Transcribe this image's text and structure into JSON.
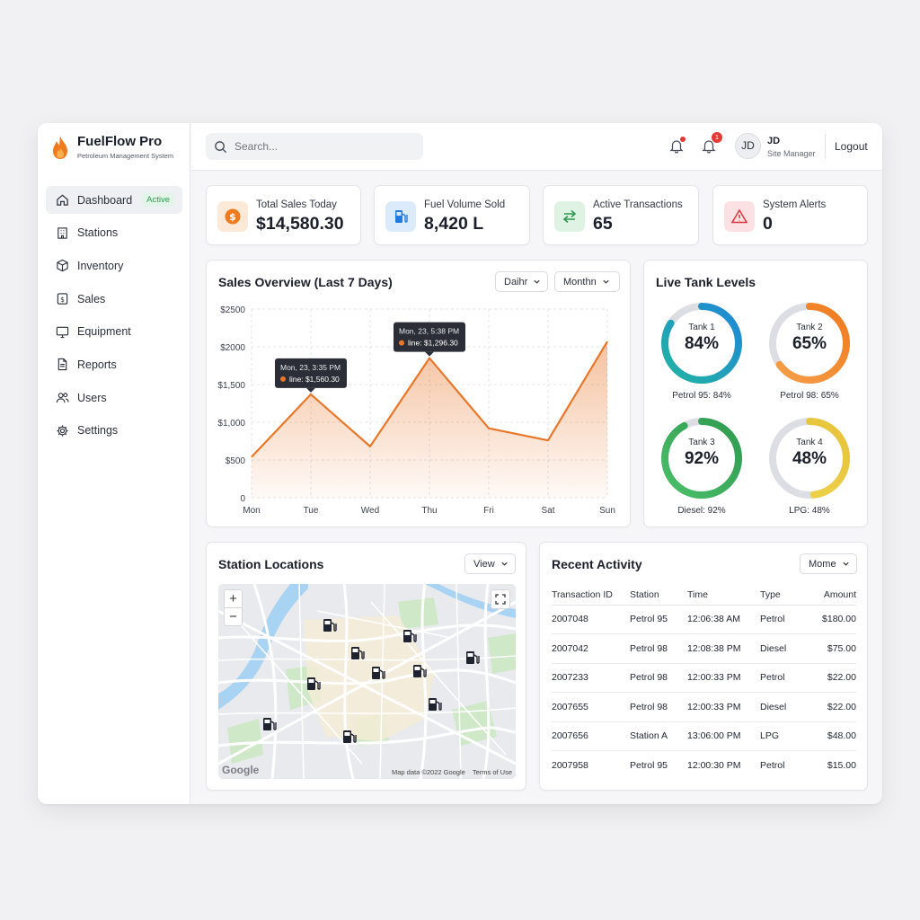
{
  "brand": {
    "title": "FuelFlow Pro",
    "subtitle": "Petroleum Management System"
  },
  "sidebar": {
    "items": [
      {
        "label": "Dashboard",
        "icon": "home-icon",
        "badge": "Active"
      },
      {
        "label": "Stations",
        "icon": "building-icon"
      },
      {
        "label": "Inventory",
        "icon": "box-icon"
      },
      {
        "label": "Sales",
        "icon": "dollar-doc-icon"
      },
      {
        "label": "Equipment",
        "icon": "monitor-icon"
      },
      {
        "label": "Reports",
        "icon": "document-icon"
      },
      {
        "label": "Users",
        "icon": "users-icon"
      },
      {
        "label": "Settings",
        "icon": "gear-icon"
      }
    ]
  },
  "header": {
    "search_placeholder": "Search...",
    "notifications_badge": "1",
    "user_initials": "JD",
    "user_name": "JD",
    "user_role": "Site Manager",
    "logout_label": "Logout"
  },
  "stats": [
    {
      "label": "Total Sales Today",
      "value": "$14,580.30",
      "color": "#f07a1e"
    },
    {
      "label": "Fuel Volume Sold",
      "value": "8,420 L",
      "color": "#1e7be0"
    },
    {
      "label": "Active Transactions",
      "value": "65",
      "color": "#2e9a4f"
    },
    {
      "label": "System Alerts",
      "value": "0",
      "color": "#d9363e"
    }
  ],
  "sales": {
    "title": "Sales Overview (Last 7 Days)",
    "dropdown1": "Daihr",
    "dropdown2": "Monthn",
    "tooltips": [
      {
        "date": "Mon, 23, 3:35 PM",
        "text": "line: $1,560.30"
      },
      {
        "date": "Mon, 23, 5:38 PM",
        "text": "line: $1,296.30"
      }
    ]
  },
  "chart_data": {
    "type": "area",
    "categories": [
      "Mon",
      "Tue",
      "Wed",
      "Thu",
      "Fri",
      "Sat",
      "Sun"
    ],
    "series": [
      {
        "name": "line",
        "values": [
          540,
          1370,
          680,
          1850,
          920,
          760,
          2070
        ]
      }
    ],
    "ylim": [
      0,
      2500
    ],
    "yticks": [
      0,
      500,
      1000,
      1500,
      2000,
      2500
    ],
    "ytick_labels": [
      "0",
      "$500",
      "$1,000",
      "$1,500",
      "$2000",
      "$2500"
    ],
    "grid": true,
    "color": "#e8772a"
  },
  "tanks": {
    "title": "Live Tank Levels",
    "items": [
      {
        "name": "Tank 1",
        "pct_label": "84%",
        "level": 0.84,
        "caption": "Petrol 95: 84%",
        "color": "#1e88d6",
        "color2": "#22b3a3"
      },
      {
        "name": "Tank 2",
        "pct_label": "65%",
        "level": 0.65,
        "caption": "Petrol 98: 65%",
        "color": "#f07a1e",
        "color2": "#f5a04a"
      },
      {
        "name": "Tank 3",
        "pct_label": "92%",
        "level": 0.92,
        "caption": "Diesel: 92%",
        "color": "#2e9a4f",
        "color2": "#4cbf6a"
      },
      {
        "name": "Tank 4",
        "pct_label": "48%",
        "level": 0.48,
        "caption": "LPG: 48%",
        "color": "#e6c23a",
        "color2": "#f0d64e"
      }
    ]
  },
  "map": {
    "title": "Station Locations",
    "view_label": "View",
    "logo": "Google",
    "attribution": "Map data ©2022 Google",
    "terms": "Terms of Use"
  },
  "activity": {
    "title": "Recent Activity",
    "more_label": "Mome",
    "columns": [
      "Transaction ID",
      "Station",
      "Time",
      "Type",
      "Amount"
    ],
    "rows": [
      [
        "2007048",
        "Petrol 95",
        "12:06:38 AM",
        "Petrol",
        "$180.00"
      ],
      [
        "2007042",
        "Petrol 98",
        "12:08:38 PM",
        "Diesel",
        "$75.00"
      ],
      [
        "2007233",
        "Petrol 98",
        "12:00:33 PM",
        "Petrol",
        "$22.00"
      ],
      [
        "2007655",
        "Petrol 98",
        "12:00:33 PM",
        "Diesel",
        "$22.00"
      ],
      [
        "2007656",
        "Station A",
        "13:06:00 PM",
        "LPG",
        "$48.00"
      ],
      [
        "2007958",
        "Petrol 95",
        "12:00:30 PM",
        "Petrol",
        "$15.00"
      ]
    ]
  }
}
